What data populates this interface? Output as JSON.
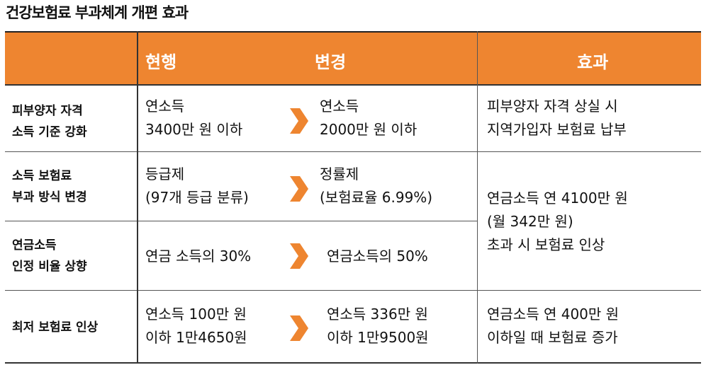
{
  "title": "건강보험료 부과체계 개편 효과",
  "header": {
    "current": "현행",
    "changed": "변경",
    "effect": "효과"
  },
  "rows": [
    {
      "label": "피부양자 자격\n소득 기준 강화",
      "current": "연소득\n3400만 원 이하",
      "changed": "연소득\n2000만 원 이하",
      "effect": "피부양자 자격 상실 시\n지역가입자 보험료 납부"
    },
    {
      "label": "소득 보험료\n부과 방식 변경",
      "current": "등급제\n(97개 등급 분류)",
      "changed": "정률제\n(보험료율 6.99%)"
    },
    {
      "label": "연금소득\n인정 비율 상향",
      "current": "연금 소득의 30%",
      "changed": "연금소득의 50%"
    },
    {
      "label": "최저 보험료 인상",
      "current": "연소득 100만 원\n이하 1만4650원",
      "changed": "연소득 336만 원\n이하 1만9500원",
      "effect": "연금소득 연 400만 원\n이하일 때 보험료 증가"
    }
  ],
  "merged_effect": "연금소득 연 4100만 원\n(월 342만 원)\n초과 시 보험료 인상",
  "accent_color": "#ee8530",
  "arrow_icon": "chevron-right-icon"
}
